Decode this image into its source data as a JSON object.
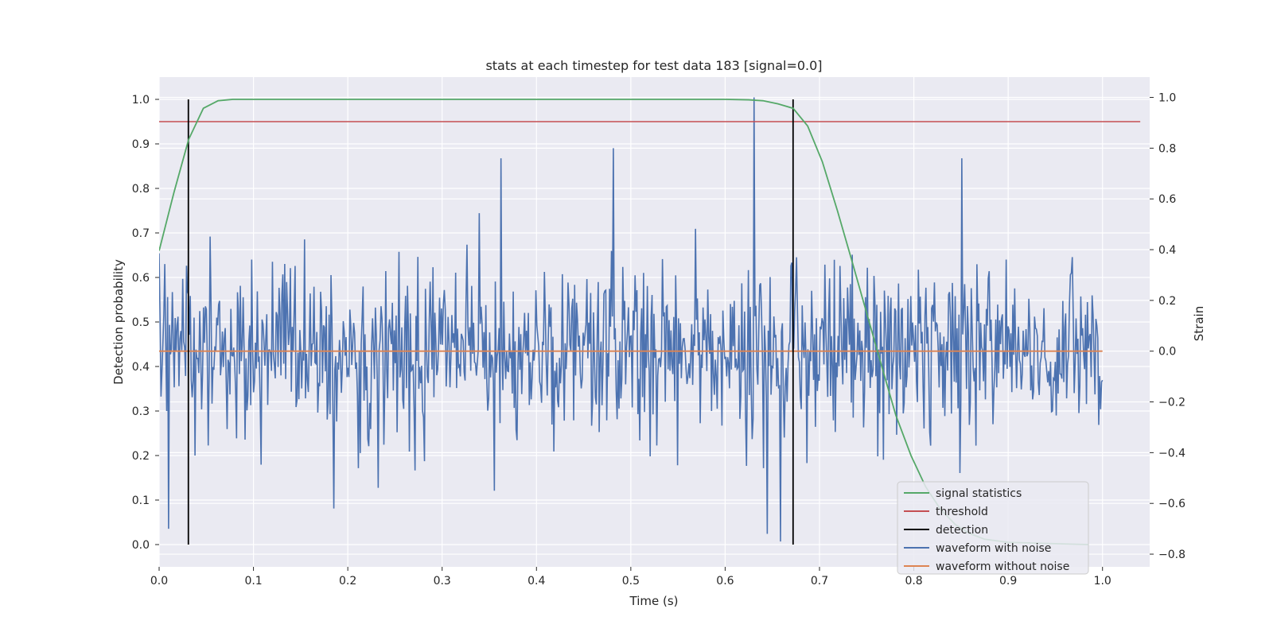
{
  "chart_data": {
    "type": "line",
    "title": "stats at each timestep for test data 183 [signal=0.0]",
    "xlabel": "Time (s)",
    "ylabel_left": "Detection probability",
    "ylabel_right": "Strain",
    "xlim": [
      0.0,
      1.05
    ],
    "ylim_left": [
      -0.05,
      1.05
    ],
    "ylim_right": [
      -0.85,
      1.08
    ],
    "x_ticks": [
      "0.0",
      "0.1",
      "0.2",
      "0.3",
      "0.4",
      "0.5",
      "0.6",
      "0.7",
      "0.8",
      "0.9",
      "1.0"
    ],
    "y_ticks_left": [
      "0.0",
      "0.1",
      "0.2",
      "0.3",
      "0.4",
      "0.5",
      "0.6",
      "0.7",
      "0.8",
      "0.9",
      "1.0"
    ],
    "y_ticks_right": [
      "−0.8",
      "−0.6",
      "−0.4",
      "−0.2",
      "0.0",
      "0.2",
      "0.4",
      "0.6",
      "0.8",
      "1.0"
    ],
    "grid": true,
    "legend_position": "lower-right",
    "colors": {
      "signal_statistics": "#55a868",
      "threshold": "#c44e52",
      "detection": "#000000",
      "waveform_with_noise": "#4c72b0",
      "waveform_without_noise": "#dd8452",
      "plot_background": "#eaeaf2",
      "grid": "#ffffff"
    },
    "series": [
      {
        "name": "signal statistics",
        "axis": "left",
        "x": [
          0.0,
          0.0156,
          0.0313,
          0.0469,
          0.0625,
          0.0781,
          0.1,
          0.2,
          0.3,
          0.4,
          0.5,
          0.6,
          0.625,
          0.64,
          0.656,
          0.672,
          0.6875,
          0.703,
          0.719,
          0.734,
          0.75,
          0.766,
          0.781,
          0.797,
          0.8125,
          0.828,
          0.844,
          0.859,
          0.875,
          0.9,
          0.95,
          0.985
        ],
        "y": [
          0.66,
          0.79,
          0.91,
          0.98,
          0.997,
          1.0,
          1.0,
          1.0,
          1.0,
          1.0,
          1.0,
          1.0,
          0.999,
          0.997,
          0.99,
          0.98,
          0.94,
          0.86,
          0.75,
          0.64,
          0.52,
          0.4,
          0.29,
          0.2,
          0.13,
          0.08,
          0.045,
          0.025,
          0.012,
          0.005,
          0.002,
          0.0
        ]
      },
      {
        "name": "threshold",
        "axis": "left",
        "x": [
          0.0,
          1.04
        ],
        "y": [
          0.95,
          0.95
        ]
      },
      {
        "name": "detection",
        "axis": "left",
        "segments": [
          {
            "x": 0.031,
            "y": [
              0.0,
              1.0
            ]
          },
          {
            "x": 0.672,
            "y": [
              0.0,
              1.0
            ]
          }
        ]
      },
      {
        "name": "waveform with noise",
        "axis": "right",
        "x_range": [
          0.0,
          1.0
        ],
        "n_points": 1000,
        "std": 0.17,
        "seed": 183,
        "peaks": [
          {
            "x": 0.631,
            "y": 1.0
          },
          {
            "x": 0.481,
            "y": 0.8
          },
          {
            "x": 0.362,
            "y": 0.76
          },
          {
            "x": 0.851,
            "y": 0.76
          },
          {
            "x": 0.659,
            "y": -0.75
          },
          {
            "x": 0.645,
            "y": -0.72
          },
          {
            "x": 0.01,
            "y": -0.7
          },
          {
            "x": 0.185,
            "y": -0.62
          },
          {
            "x": 0.355,
            "y": -0.55
          }
        ]
      },
      {
        "name": "waveform without noise",
        "axis": "right",
        "x": [
          0.0,
          1.0
        ],
        "y": [
          0.0,
          0.0
        ]
      }
    ]
  }
}
